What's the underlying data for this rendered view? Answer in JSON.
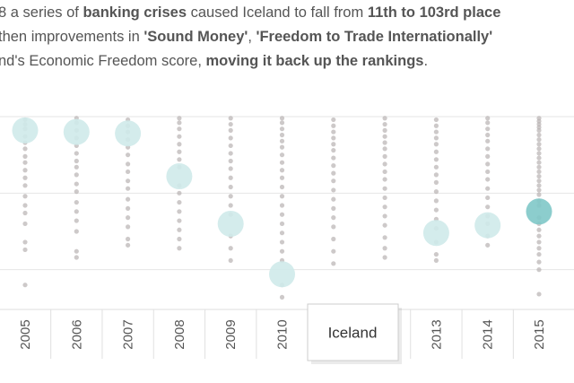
{
  "chart_data": {
    "type": "strip",
    "subtitle_lines": [
      [
        {
          "text": "8 a series of ",
          "bold": false
        },
        {
          "text": "banking crises",
          "bold": true
        },
        {
          "text": " caused Iceland to fall from ",
          "bold": false
        },
        {
          "text": "11th to 103rd place",
          "bold": true
        }
      ],
      [
        {
          "text": "then improvements in ",
          "bold": false
        },
        {
          "text": "'Sound Money'",
          "bold": true
        },
        {
          "text": ", ",
          "bold": false
        },
        {
          "text": "'Freedom to Trade Internationally'",
          "bold": true
        }
      ],
      [
        {
          "text": "nd's Economic Freedom score, ",
          "bold": false
        },
        {
          "text": "moving it back up the rankings",
          "bold": true
        },
        {
          "text": ".",
          "bold": false
        }
      ]
    ],
    "categories": [
      "2005",
      "2006",
      "2007",
      "2008",
      "2009",
      "2010",
      null,
      null,
      "2013",
      "2014",
      "2015"
    ],
    "ylim": [
      126,
      -3
    ],
    "yticks": [
      0,
      50,
      100
    ],
    "grid": true,
    "background_points": {
      "color": "#b8b2b2",
      "values": [
        [
          2,
          5,
          8,
          13,
          17,
          21,
          26,
          30,
          35,
          40,
          45,
          52,
          58,
          63,
          70,
          82,
          87,
          110
        ],
        [
          1,
          4,
          9,
          14,
          19,
          24,
          29,
          33,
          38,
          44,
          49,
          56,
          62,
          68,
          75,
          88,
          92
        ],
        [
          2,
          6,
          10,
          15,
          20,
          25,
          31,
          36,
          42,
          47,
          54,
          60,
          66,
          72,
          80,
          84
        ],
        [
          1,
          4,
          8,
          13,
          18,
          23,
          28,
          33,
          45,
          50,
          56,
          62,
          68,
          74,
          80,
          86
        ],
        [
          1,
          5,
          9,
          14,
          19,
          24,
          29,
          34,
          40,
          46,
          52,
          58,
          64,
          78,
          86,
          94
        ],
        [
          1,
          4,
          8,
          12,
          16,
          20,
          25,
          30,
          35,
          40,
          46,
          52,
          58,
          64,
          70,
          76,
          82,
          88,
          94,
          110,
          118
        ],
        [
          2,
          6,
          10,
          14,
          18,
          22,
          27,
          32,
          37,
          42,
          48,
          54,
          60,
          66,
          72,
          80,
          88,
          96
        ],
        [
          1,
          5,
          9,
          13,
          17,
          21,
          26,
          31,
          36,
          41,
          47,
          53,
          59,
          65,
          71,
          79,
          86,
          92
        ],
        [
          2,
          6,
          10,
          14,
          18,
          23,
          28,
          33,
          38,
          43,
          49,
          55,
          61,
          67,
          73,
          82,
          90,
          94
        ],
        [
          1,
          4,
          8,
          12,
          16,
          21,
          26,
          31,
          36,
          41,
          47,
          53,
          59,
          65,
          70,
          78,
          84
        ],
        [
          1,
          3,
          5,
          7,
          9,
          12,
          15,
          18,
          21,
          24,
          27,
          30,
          33,
          36,
          39,
          42,
          45,
          48,
          51,
          55,
          58,
          66,
          70,
          74,
          78,
          82,
          86,
          90,
          95,
          100,
          116
        ]
      ]
    },
    "series": [
      {
        "name": "Iceland",
        "values": [
          9,
          10,
          11,
          39,
          70,
          103,
          null,
          null,
          76,
          71,
          62
        ],
        "point_colors": [
          "#cfeaea",
          "#cfeaea",
          "#cfeaea",
          "#cfeaea",
          "#cfeaea",
          "#cfeaea",
          null,
          null,
          "#cfeaea",
          "#cfeaea",
          "#7fc8c8"
        ]
      }
    ],
    "tooltip": "Iceland"
  }
}
